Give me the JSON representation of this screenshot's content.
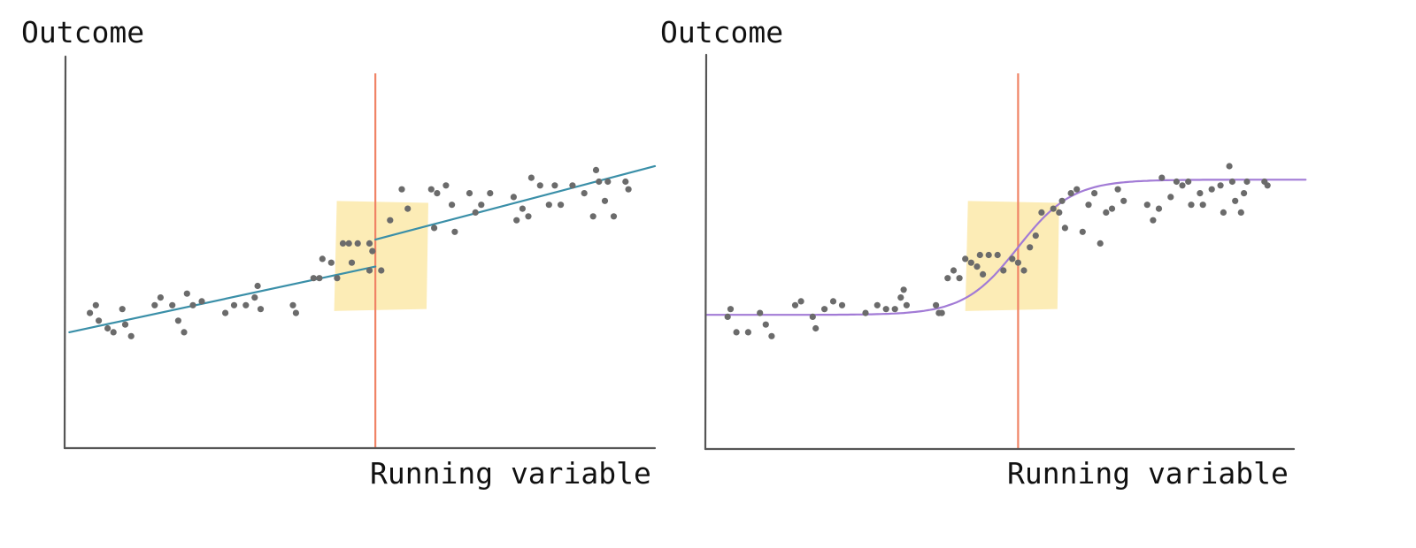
{
  "chart_data": [
    {
      "type": "scatter",
      "panel": "left",
      "ylabel": "Outcome",
      "xlabel": "Running variable",
      "xlim": [
        0,
        100
      ],
      "ylim": [
        0,
        100
      ],
      "grid": false,
      "cutoff": 52.5,
      "highlight_band": [
        45.5,
        61.5
      ],
      "fit": "linear, separate lines each side of cutoff",
      "fit_color": "#3a8fa8",
      "cutoff_color": "#f08466",
      "band_color": "#fbe59a",
      "points": [
        [
          4,
          35
        ],
        [
          5,
          37
        ],
        [
          5.5,
          33
        ],
        [
          7,
          31
        ],
        [
          8,
          30
        ],
        [
          9.5,
          36
        ],
        [
          10,
          32
        ],
        [
          11,
          29
        ],
        [
          15,
          37
        ],
        [
          16,
          39
        ],
        [
          18,
          37
        ],
        [
          19,
          33
        ],
        [
          20,
          30
        ],
        [
          20.5,
          40
        ],
        [
          21.5,
          37
        ],
        [
          23,
          38
        ],
        [
          27,
          35
        ],
        [
          28.5,
          37
        ],
        [
          30.5,
          37
        ],
        [
          32,
          39
        ],
        [
          32.5,
          42
        ],
        [
          33,
          36
        ],
        [
          38.5,
          37
        ],
        [
          39,
          35
        ],
        [
          42,
          44
        ],
        [
          43,
          44
        ],
        [
          43.5,
          49
        ],
        [
          45,
          48
        ],
        [
          46,
          44
        ],
        [
          47,
          53
        ],
        [
          48,
          53
        ],
        [
          48.5,
          48
        ],
        [
          49.5,
          53
        ],
        [
          51.5,
          53
        ],
        [
          51.5,
          46
        ],
        [
          52,
          51
        ],
        [
          53.5,
          46
        ],
        [
          55,
          59
        ],
        [
          58,
          62
        ],
        [
          57,
          67
        ],
        [
          62,
          67
        ],
        [
          63,
          66
        ],
        [
          64.5,
          68
        ],
        [
          62.5,
          57
        ],
        [
          65.5,
          63
        ],
        [
          66,
          56
        ],
        [
          68.5,
          66
        ],
        [
          69.5,
          61
        ],
        [
          70.5,
          63
        ],
        [
          72,
          66
        ],
        [
          76,
          65
        ],
        [
          76.5,
          59
        ],
        [
          77.5,
          62
        ],
        [
          78.5,
          60
        ],
        [
          79,
          70
        ],
        [
          80.5,
          68
        ],
        [
          82,
          63
        ],
        [
          83,
          68
        ],
        [
          84,
          63
        ],
        [
          86,
          68
        ],
        [
          88,
          66
        ],
        [
          89.5,
          60
        ],
        [
          90,
          72
        ],
        [
          90.5,
          69
        ],
        [
          91.5,
          64
        ],
        [
          92,
          69
        ],
        [
          93,
          60
        ],
        [
          95,
          69
        ],
        [
          95.5,
          67
        ]
      ],
      "fit_segments": [
        {
          "x": [
            0.5,
            52.5
          ],
          "y": [
            30,
            47
          ]
        },
        {
          "x": [
            52.5,
            100
          ],
          "y": [
            54,
            73
          ]
        }
      ]
    },
    {
      "type": "scatter",
      "panel": "right",
      "ylabel": "Outcome",
      "xlabel": "Running variable",
      "xlim": [
        0,
        100
      ],
      "ylim": [
        0,
        100
      ],
      "grid": false,
      "cutoff": 53,
      "highlight_band": [
        44,
        60
      ],
      "fit": "sigmoid (smooth curve across cutoff)",
      "fit_color": "#a27bd6",
      "cutoff_color": "#f08466",
      "band_color": "#fbe59a",
      "fit_params": {
        "low": 34.5,
        "high": 69.5,
        "center": 53,
        "scale": 4.6
      },
      "points": [
        [
          3.5,
          34
        ],
        [
          4,
          36
        ],
        [
          5,
          30
        ],
        [
          7,
          30
        ],
        [
          9,
          35
        ],
        [
          10,
          32
        ],
        [
          11,
          29
        ],
        [
          15,
          37
        ],
        [
          16,
          38
        ],
        [
          18,
          34
        ],
        [
          18.5,
          31
        ],
        [
          20,
          36
        ],
        [
          21.5,
          38
        ],
        [
          23,
          37
        ],
        [
          27,
          35
        ],
        [
          29,
          37
        ],
        [
          30.5,
          36
        ],
        [
          32,
          36
        ],
        [
          33,
          39
        ],
        [
          33.5,
          41
        ],
        [
          34,
          37
        ],
        [
          39,
          37
        ],
        [
          39.5,
          35
        ],
        [
          40,
          35
        ],
        [
          41,
          44
        ],
        [
          42,
          46
        ],
        [
          43,
          44
        ],
        [
          44,
          49
        ],
        [
          45,
          48
        ],
        [
          46,
          47
        ],
        [
          46.5,
          50
        ],
        [
          47,
          45
        ],
        [
          48,
          50
        ],
        [
          49.5,
          50
        ],
        [
          50.5,
          46
        ],
        [
          52,
          49
        ],
        [
          53,
          48
        ],
        [
          54,
          46
        ],
        [
          55,
          52
        ],
        [
          56,
          55
        ],
        [
          57,
          61
        ],
        [
          59,
          62
        ],
        [
          60,
          61
        ],
        [
          60.5,
          64
        ],
        [
          61,
          57
        ],
        [
          62,
          66
        ],
        [
          63,
          67
        ],
        [
          64,
          56
        ],
        [
          65,
          63
        ],
        [
          66,
          66
        ],
        [
          67,
          53
        ],
        [
          68,
          61
        ],
        [
          69,
          62
        ],
        [
          70,
          67
        ],
        [
          71,
          64
        ],
        [
          75,
          63
        ],
        [
          76,
          59
        ],
        [
          77,
          62
        ],
        [
          77.5,
          70
        ],
        [
          79,
          65
        ],
        [
          80,
          69
        ],
        [
          81,
          68
        ],
        [
          82,
          69
        ],
        [
          82.5,
          63
        ],
        [
          84,
          66
        ],
        [
          84.5,
          63
        ],
        [
          86,
          67
        ],
        [
          87.5,
          68
        ],
        [
          88,
          61
        ],
        [
          89,
          73
        ],
        [
          89.5,
          69
        ],
        [
          90,
          64
        ],
        [
          91,
          61
        ],
        [
          91.5,
          66
        ],
        [
          92,
          69
        ],
        [
          95.5,
          68
        ],
        [
          95,
          69
        ]
      ]
    }
  ],
  "panels": [
    {
      "ylabel": "Outcome",
      "xlabel": "Running variable"
    },
    {
      "ylabel": "Outcome",
      "xlabel": "Running variable"
    }
  ]
}
